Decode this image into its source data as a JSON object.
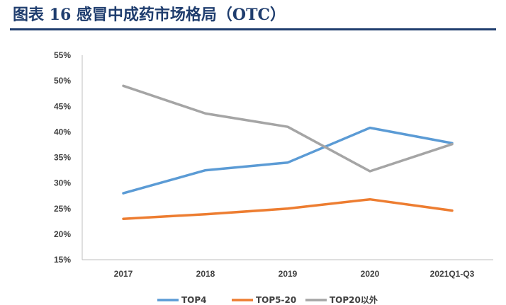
{
  "figure": {
    "title": "图表 16   感冒中成药市场格局（OTC）"
  },
  "colors": {
    "title": "#1f3d6e",
    "axis": "#bfbfbf",
    "text": "#404040"
  },
  "chart_data": {
    "type": "line",
    "categories": [
      "2017",
      "2018",
      "2019",
      "2020",
      "2021Q1-Q3"
    ],
    "y_ticks": [
      "15%",
      "20%",
      "25%",
      "30%",
      "35%",
      "40%",
      "45%",
      "50%",
      "55%"
    ],
    "ylim": [
      15,
      55
    ],
    "y_unit": "%",
    "grid": false,
    "legend_position": "bottom",
    "series": [
      {
        "name": "TOP4",
        "color": "#5b9bd5",
        "values": [
          28.0,
          32.5,
          34.0,
          40.8,
          37.8
        ]
      },
      {
        "name": "TOP5-20",
        "color": "#ed7d31",
        "values": [
          23.0,
          23.9,
          25.0,
          26.8,
          24.6
        ]
      },
      {
        "name": "TOP20以外",
        "color": "#a5a5a5",
        "values": [
          49.0,
          43.6,
          41.0,
          32.3,
          37.6
        ]
      }
    ]
  }
}
